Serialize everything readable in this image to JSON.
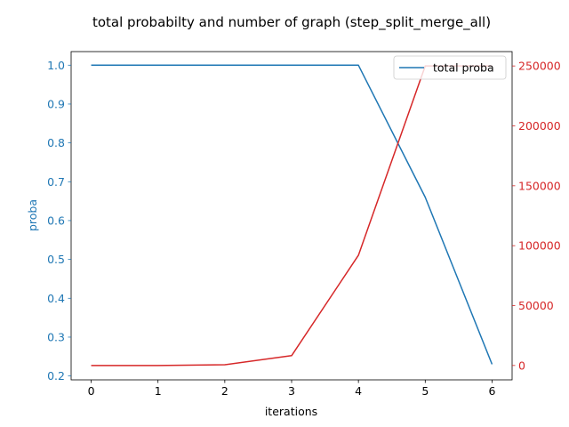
{
  "chart_data": {
    "type": "line",
    "title": "total probabilty and number of graph (step_split_merge_all)",
    "xlabel": "iterations",
    "ylabel": "proba",
    "y2label": "",
    "x": [
      0,
      1,
      2,
      3,
      4,
      5,
      6
    ],
    "xlim": [
      -0.3,
      6.3
    ],
    "ylim": [
      0.19,
      1.035
    ],
    "y2lim": [
      -12000,
      262000
    ],
    "xticks": [
      "0",
      "1",
      "2",
      "3",
      "4",
      "5",
      "6"
    ],
    "yticks": [
      "0.2",
      "0.3",
      "0.4",
      "0.5",
      "0.6",
      "0.7",
      "0.8",
      "0.9",
      "1.0"
    ],
    "y2ticks": [
      "0",
      "50000",
      "100000",
      "150000",
      "200000",
      "250000"
    ],
    "series": [
      {
        "name": "total proba",
        "axis": "left",
        "color": "#1f77b4",
        "values": [
          1.0,
          1.0,
          1.0,
          1.0,
          1.0,
          0.66,
          0.23
        ]
      },
      {
        "axis": "right",
        "color": "#d62728",
        "values": [
          0,
          0,
          600,
          8200,
          92000,
          250000,
          250000
        ]
      }
    ],
    "legend": {
      "position": "top-right",
      "entries": [
        "total proba"
      ]
    },
    "grid": false,
    "colors": {
      "left_axis": "#1f77b4",
      "right_axis": "#d62728",
      "frame": "#000000"
    }
  }
}
